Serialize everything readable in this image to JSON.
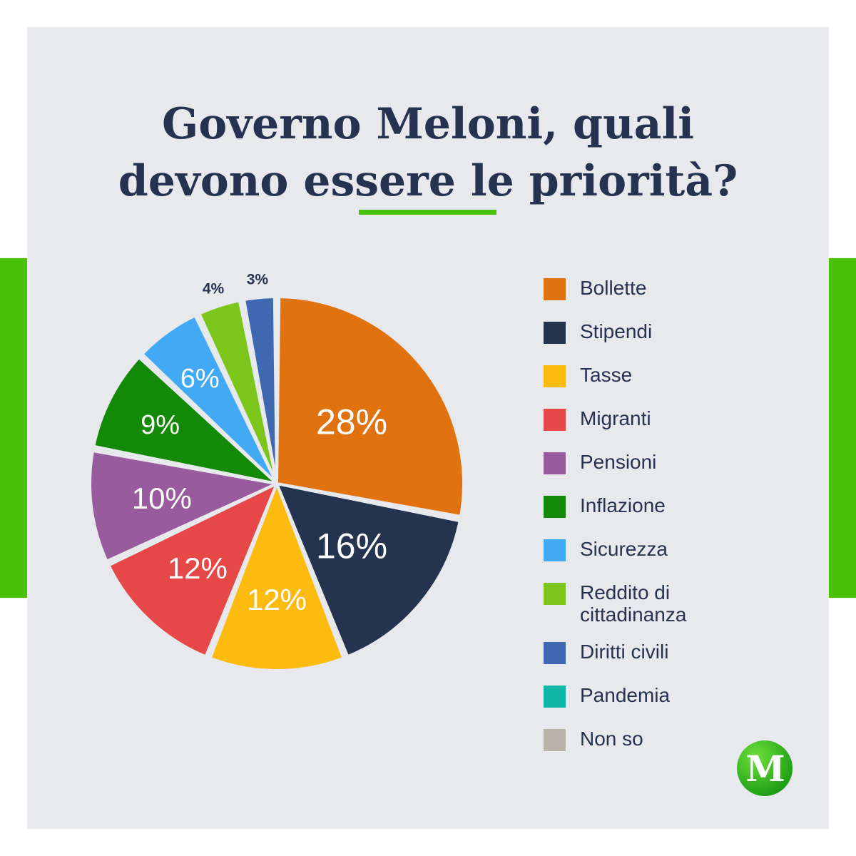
{
  "brand": {
    "accent": "#47c10a",
    "title_color": "#253351",
    "background": "#e8e9ed"
  },
  "header": {
    "title_line1": "Governo Meloni, quali",
    "title_line2": "devono essere le priorità?"
  },
  "logo": {
    "letter": "M",
    "icon": "m-logo-icon"
  },
  "chart_data": {
    "type": "pie",
    "title": "Governo Meloni, quali devono essere le priorità?",
    "legend_position": "right",
    "slices": [
      {
        "name": "Bollette",
        "value": 28,
        "label": "28%",
        "color": "#e07210"
      },
      {
        "name": "Stipendi",
        "value": 16,
        "label": "16%",
        "color": "#24334e"
      },
      {
        "name": "Tasse",
        "value": 12,
        "label": "12%",
        "color": "#fdba0f"
      },
      {
        "name": "Migranti",
        "value": 12,
        "label": "12%",
        "color": "#e64848"
      },
      {
        "name": "Pensioni",
        "value": 10,
        "label": "10%",
        "color": "#985b9d"
      },
      {
        "name": "Inflazione",
        "value": 9,
        "label": "9%",
        "color": "#138a07"
      },
      {
        "name": "Sicurezza",
        "value": 6,
        "label": "6%",
        "color": "#42a9f5"
      },
      {
        "name": "Reddito di cittadinanza",
        "value": 4,
        "label": "4%",
        "color": "#7cc51a"
      },
      {
        "name": "Diritti civili",
        "value": 3,
        "label": "3%",
        "color": "#3e68b0"
      },
      {
        "name": "Pandemia",
        "value": 0,
        "label": "",
        "color": "#0fb7a6"
      },
      {
        "name": "Non so",
        "value": 0,
        "label": "",
        "color": "#b9b4a9"
      }
    ]
  },
  "legend": {
    "items": [
      {
        "lines": [
          "Bollette"
        ],
        "color": "#e07210"
      },
      {
        "lines": [
          "Stipendi"
        ],
        "color": "#24334e"
      },
      {
        "lines": [
          "Tasse"
        ],
        "color": "#fdba0f"
      },
      {
        "lines": [
          "Migranti"
        ],
        "color": "#e64848"
      },
      {
        "lines": [
          "Pensioni"
        ],
        "color": "#985b9d"
      },
      {
        "lines": [
          "Inflazione"
        ],
        "color": "#138a07"
      },
      {
        "lines": [
          "Sicurezza"
        ],
        "color": "#42a9f5"
      },
      {
        "lines": [
          "Reddito di",
          "cittadinanza"
        ],
        "color": "#7cc51a"
      },
      {
        "lines": [
          "Diritti civili"
        ],
        "color": "#3e68b0"
      },
      {
        "lines": [
          "Pandemia"
        ],
        "color": "#0fb7a6"
      },
      {
        "lines": [
          "Non so"
        ],
        "color": "#b9b4a9"
      }
    ]
  }
}
